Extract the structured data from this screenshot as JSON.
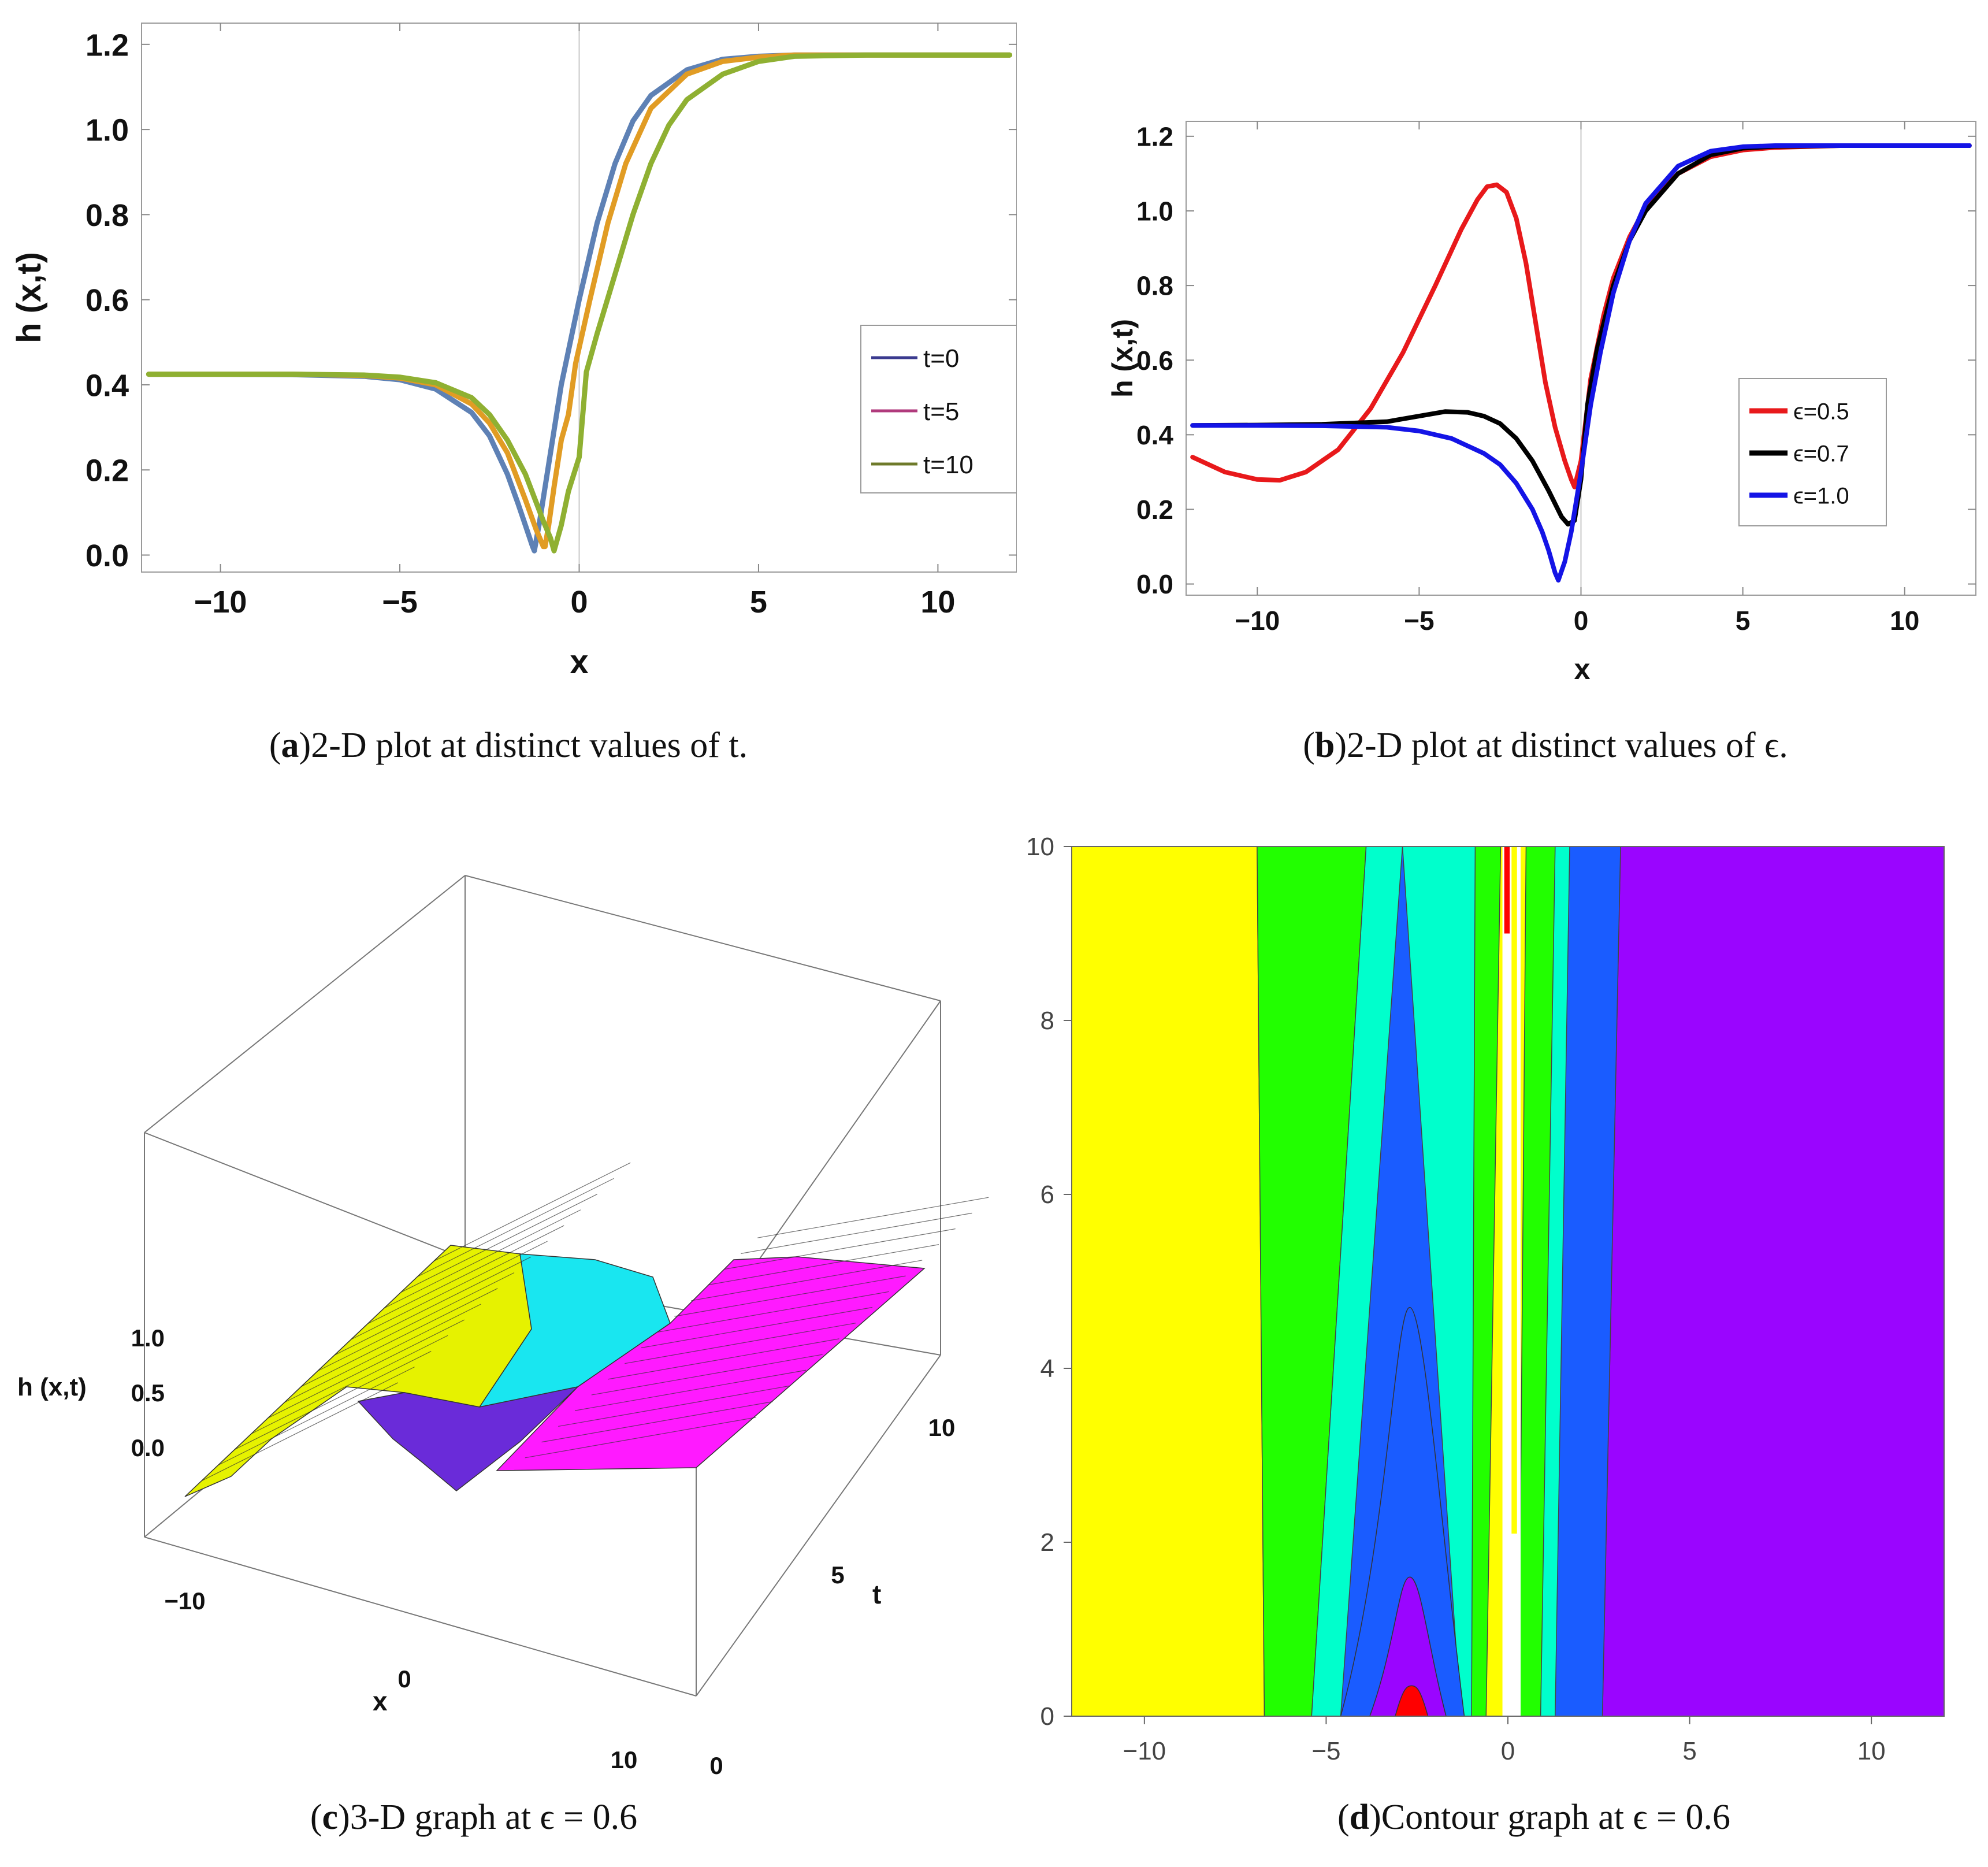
{
  "panel_a": {
    "caption_letter": "a",
    "caption_text": "2-D plot at distinct values of t.",
    "chart_data": {
      "type": "line",
      "xlabel": "x",
      "ylabel": "h (x,t)",
      "xlim": [
        -12.2,
        12.2
      ],
      "ylim": [
        -0.04,
        1.25
      ],
      "xticks": [
        -10,
        -5,
        0,
        5,
        10
      ],
      "xtick_labels": [
        "−10",
        "−5",
        "0",
        "5",
        "10"
      ],
      "yticks": [
        0.0,
        0.2,
        0.4,
        0.6,
        0.8,
        1.0,
        1.2
      ],
      "ytick_labels": [
        "0.0",
        "0.2",
        "0.4",
        "0.6",
        "0.8",
        "1.0",
        "1.2"
      ],
      "grid": false,
      "legend_position": "right",
      "series": [
        {
          "name": "t=0",
          "legend_color": "#3b3b8f",
          "color": "#5e81b5",
          "x": [
            -12,
            -10,
            -8,
            -6,
            -5,
            -4,
            -3,
            -2.5,
            -2,
            -1.7,
            -1.5,
            -1.3,
            -1.25,
            -1.1,
            -0.8,
            -0.5,
            0,
            0.5,
            1,
            1.5,
            2,
            3,
            4,
            5,
            6,
            8,
            10,
            12
          ],
          "y": [
            0.425,
            0.425,
            0.424,
            0.42,
            0.412,
            0.39,
            0.335,
            0.28,
            0.19,
            0.12,
            0.07,
            0.02,
            0.01,
            0.08,
            0.24,
            0.4,
            0.6,
            0.78,
            0.92,
            1.02,
            1.08,
            1.14,
            1.165,
            1.172,
            1.175,
            1.175,
            1.175,
            1.175
          ]
        },
        {
          "name": "t=5",
          "legend_color": "#b03a7c",
          "color": "#e19c24",
          "x": [
            -12,
            -10,
            -8,
            -6,
            -5,
            -4,
            -3,
            -2.5,
            -2,
            -1.5,
            -1.2,
            -1.0,
            -0.95,
            -0.85,
            -0.7,
            -0.5,
            -0.3,
            -0.1,
            0.3,
            0.8,
            1.3,
            2,
            3,
            4,
            5,
            6,
            8,
            10,
            12
          ],
          "y": [
            0.425,
            0.425,
            0.425,
            0.422,
            0.416,
            0.4,
            0.355,
            0.31,
            0.24,
            0.13,
            0.06,
            0.02,
            0.02,
            0.07,
            0.16,
            0.27,
            0.33,
            0.45,
            0.6,
            0.78,
            0.92,
            1.05,
            1.13,
            1.16,
            1.17,
            1.175,
            1.175,
            1.175,
            1.175
          ]
        },
        {
          "name": "t=10",
          "legend_color": "#6e7a2a",
          "color": "#8fb032",
          "x": [
            -12,
            -10,
            -8,
            -6,
            -5,
            -4,
            -3,
            -2.5,
            -2,
            -1.5,
            -1.0,
            -0.8,
            -0.7,
            -0.5,
            -0.3,
            0,
            0.2,
            0.5,
            1,
            1.5,
            2,
            2.5,
            3,
            4,
            5,
            6,
            8,
            10,
            12
          ],
          "y": [
            0.425,
            0.425,
            0.425,
            0.423,
            0.418,
            0.405,
            0.37,
            0.33,
            0.27,
            0.19,
            0.08,
            0.04,
            0.01,
            0.07,
            0.15,
            0.23,
            0.43,
            0.52,
            0.66,
            0.8,
            0.92,
            1.01,
            1.07,
            1.13,
            1.16,
            1.172,
            1.175,
            1.175,
            1.175
          ]
        }
      ]
    }
  },
  "panel_b": {
    "caption_letter": "b",
    "caption_text": "2-D plot at distinct values of ϵ.",
    "chart_data": {
      "type": "line",
      "xlabel": "x",
      "ylabel": "h (x,t)",
      "xlim": [
        -12.2,
        12.2
      ],
      "ylim": [
        -0.03,
        1.24
      ],
      "xticks": [
        -10,
        -5,
        0,
        5,
        10
      ],
      "xtick_labels": [
        "−10",
        "−5",
        "0",
        "5",
        "10"
      ],
      "yticks": [
        0.0,
        0.2,
        0.4,
        0.6,
        0.8,
        1.0,
        1.2
      ],
      "ytick_labels": [
        "0.0",
        "0.2",
        "0.4",
        "0.6",
        "0.8",
        "1.0",
        "1.2"
      ],
      "grid": false,
      "legend_position": "right",
      "series": [
        {
          "name": "ϵ=0.5",
          "color": "#e8191b",
          "x": [
            -12,
            -11,
            -10,
            -9.3,
            -8.5,
            -7.5,
            -6.5,
            -5.5,
            -4.5,
            -3.7,
            -3.2,
            -2.9,
            -2.6,
            -2.3,
            -2,
            -1.7,
            -1.4,
            -1.1,
            -0.8,
            -0.5,
            -0.3,
            -0.2,
            0,
            0.3,
            0.7,
            1,
            1.5,
            2,
            3,
            4,
            5,
            6,
            8,
            10,
            12
          ],
          "y": [
            0.34,
            0.3,
            0.28,
            0.278,
            0.3,
            0.36,
            0.47,
            0.62,
            0.8,
            0.95,
            1.03,
            1.065,
            1.07,
            1.05,
            0.98,
            0.86,
            0.7,
            0.54,
            0.42,
            0.33,
            0.28,
            0.26,
            0.33,
            0.55,
            0.72,
            0.82,
            0.93,
            1.01,
            1.1,
            1.145,
            1.163,
            1.17,
            1.175,
            1.175,
            1.175
          ]
        },
        {
          "name": "ϵ=0.7",
          "color": "#000000",
          "x": [
            -12,
            -10,
            -8,
            -6,
            -5,
            -4.2,
            -3.5,
            -3,
            -2.5,
            -2,
            -1.5,
            -1,
            -0.6,
            -0.4,
            -0.2,
            0,
            0.2,
            0.5,
            1,
            1.5,
            2,
            3,
            4,
            5,
            6,
            8,
            10,
            12
          ],
          "y": [
            0.425,
            0.426,
            0.428,
            0.435,
            0.45,
            0.462,
            0.46,
            0.45,
            0.43,
            0.39,
            0.33,
            0.25,
            0.18,
            0.16,
            0.17,
            0.28,
            0.48,
            0.63,
            0.8,
            0.92,
            1.0,
            1.1,
            1.15,
            1.168,
            1.173,
            1.175,
            1.175,
            1.175
          ]
        },
        {
          "name": "ϵ=1.0",
          "color": "#1414e6",
          "x": [
            -12,
            -10,
            -8,
            -6,
            -5,
            -4,
            -3,
            -2.5,
            -2,
            -1.5,
            -1.2,
            -1,
            -0.8,
            -0.7,
            -0.5,
            -0.3,
            0,
            0.3,
            0.6,
            1,
            1.5,
            2,
            3,
            4,
            5,
            6,
            8,
            10,
            12
          ],
          "y": [
            0.425,
            0.425,
            0.424,
            0.42,
            0.41,
            0.39,
            0.35,
            0.32,
            0.27,
            0.2,
            0.14,
            0.09,
            0.03,
            0.01,
            0.06,
            0.14,
            0.3,
            0.48,
            0.62,
            0.78,
            0.92,
            1.02,
            1.12,
            1.16,
            1.172,
            1.175,
            1.175,
            1.175,
            1.175
          ]
        }
      ]
    }
  },
  "panel_c": {
    "caption_letter": "c",
    "caption_text": "3-D graph at ϵ = 0.6",
    "chart_data": {
      "type": "surface3d",
      "xlabel": "x",
      "ylabel": "t",
      "zlabel": "h (x,t)",
      "xticks": [
        "−10",
        "0",
        "10"
      ],
      "yticks": [
        "0",
        "5",
        "10"
      ],
      "zticks": [
        "0.0",
        "0.5",
        "1.0"
      ],
      "colors": {
        "left": "#e6f200",
        "mid": "#19e6f0",
        "dip": "#6a2bd9",
        "right": "#ff1aff"
      }
    }
  },
  "panel_d": {
    "caption_letter": "d",
    "caption_text": "Contour graph at ϵ = 0.6",
    "chart_data": {
      "type": "contour",
      "xlim": [
        -12,
        12
      ],
      "ylim": [
        0,
        10
      ],
      "xticks": [
        "−10",
        "−5",
        "0",
        "5",
        "10"
      ],
      "yticks": [
        "0",
        "2",
        "4",
        "6",
        "8",
        "10"
      ],
      "colors": {
        "yellow": "#ffff00",
        "green": "#22ff00",
        "cyan": "#00ffcc",
        "blue": "#1a5cff",
        "purple": "#9a05ff",
        "red": "#ff0000",
        "white": "#ffffff"
      }
    }
  }
}
